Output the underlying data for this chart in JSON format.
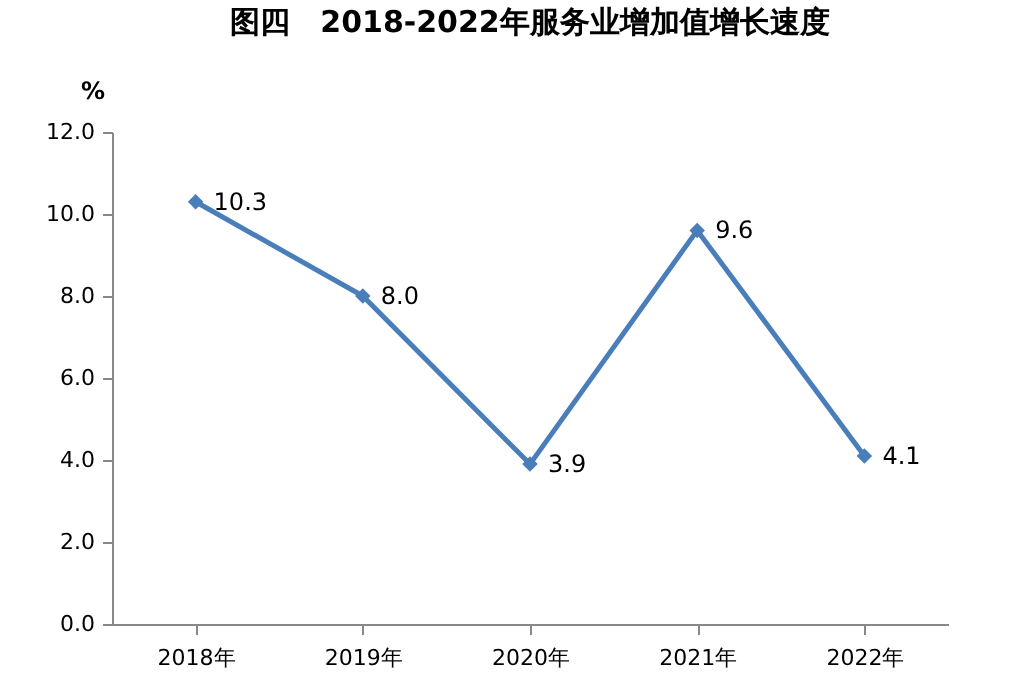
{
  "chart_data": {
    "type": "line",
    "title": "图四　2018-2022年服务业增加值增长速度",
    "ylabel": "%",
    "categories": [
      "2018年",
      "2019年",
      "2020年",
      "2021年",
      "2022年"
    ],
    "series": [
      {
        "color": "#4a7ebb",
        "values": [
          10.3,
          8.0,
          3.9,
          9.6,
          4.1
        ]
      }
    ],
    "value_labels": [
      "10.3",
      "8.0",
      "3.9",
      "9.6",
      "4.1"
    ],
    "ylim": [
      0,
      12
    ],
    "yticks": [
      {
        "value": 0,
        "label": "0.0"
      },
      {
        "value": 2,
        "label": "2.0"
      },
      {
        "value": 4,
        "label": "4.0"
      },
      {
        "value": 6,
        "label": "6.0"
      },
      {
        "value": 8,
        "label": "8.0"
      },
      {
        "value": 10,
        "label": "10.0"
      },
      {
        "value": 12,
        "label": "12.0"
      }
    ],
    "grid": false,
    "marker": "diamond",
    "line_style": "solid"
  }
}
